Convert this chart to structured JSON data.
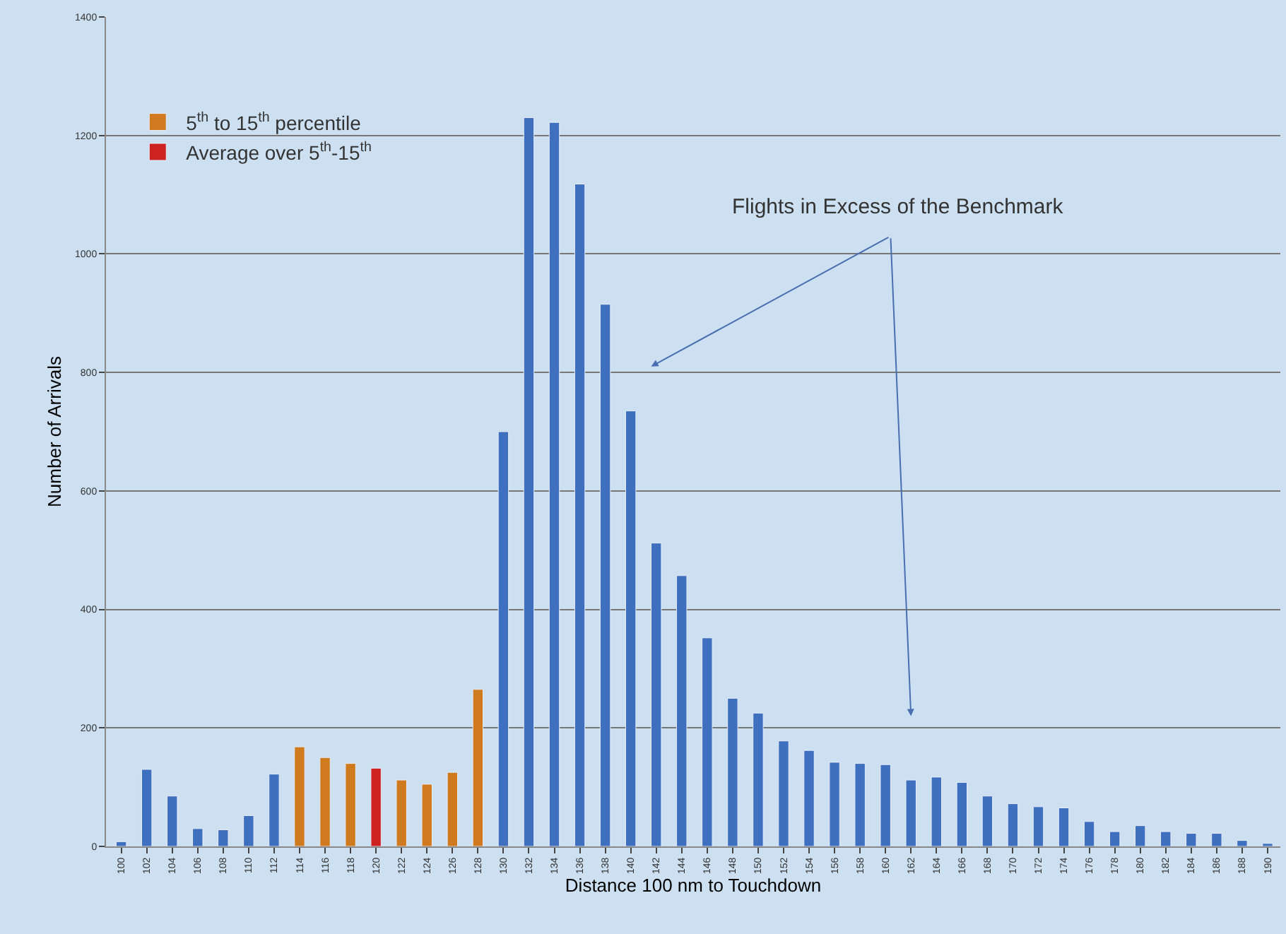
{
  "chart_data": {
    "type": "bar",
    "xlabel": "Distance 100 nm to Touchdown",
    "ylabel": "Number of Arrivals",
    "categories": [
      "100",
      "102",
      "104",
      "106",
      "108",
      "110",
      "112",
      "114",
      "116",
      "118",
      "120",
      "122",
      "124",
      "126",
      "128",
      "130",
      "132",
      "134",
      "136",
      "138",
      "140",
      "142",
      "144",
      "146",
      "148",
      "150",
      "152",
      "154",
      "156",
      "158",
      "160",
      "162",
      "164",
      "166",
      "168",
      "170",
      "172",
      "174",
      "176",
      "178",
      "180",
      "182",
      "184",
      "186",
      "188",
      "190"
    ],
    "series": [
      {
        "color": "#3f6fbf",
        "values": [
          8,
          130,
          85,
          30,
          28,
          52,
          122,
          null,
          null,
          null,
          null,
          null,
          null,
          null,
          null,
          700,
          1230,
          1222,
          1118,
          915,
          735,
          512,
          457,
          352,
          250,
          225,
          178,
          162,
          142,
          140,
          138,
          112,
          117,
          108,
          85,
          72,
          67,
          65,
          42,
          25,
          35,
          25,
          22,
          22,
          10,
          5
        ]
      },
      {
        "name": "5$^{th}$ to 15$^{th}$ percentile",
        "color": "#d07a20",
        "values": [
          null,
          null,
          null,
          null,
          null,
          null,
          null,
          168,
          150,
          140,
          null,
          112,
          105,
          125,
          265,
          null,
          null,
          null,
          null,
          null,
          null,
          null,
          null,
          null,
          null,
          null,
          null,
          null,
          null,
          null,
          null,
          null,
          null,
          null,
          null,
          null,
          null,
          null,
          null,
          null,
          null,
          null,
          null,
          null,
          null,
          null
        ]
      },
      {
        "name": "Average over 5$^{th}$-15$^{th}$",
        "color": "#cc2222",
        "values": [
          null,
          null,
          null,
          null,
          null,
          null,
          null,
          null,
          null,
          null,
          132,
          null,
          null,
          null,
          null,
          null,
          null,
          null,
          null,
          null,
          null,
          null,
          null,
          null,
          null,
          null,
          null,
          null,
          null,
          null,
          null,
          null,
          null,
          null,
          null,
          null,
          null,
          null,
          null,
          null,
          null,
          null,
          null,
          null,
          null,
          null
        ]
      }
    ],
    "annotations": [
      "Flights in Excess of the Benchmark"
    ],
    "ylim": [
      0,
      1400
    ],
    "yticks": [
      0,
      200,
      400,
      600,
      800,
      1000,
      1200,
      1400
    ],
    "grid": "y",
    "legend": "top left"
  }
}
